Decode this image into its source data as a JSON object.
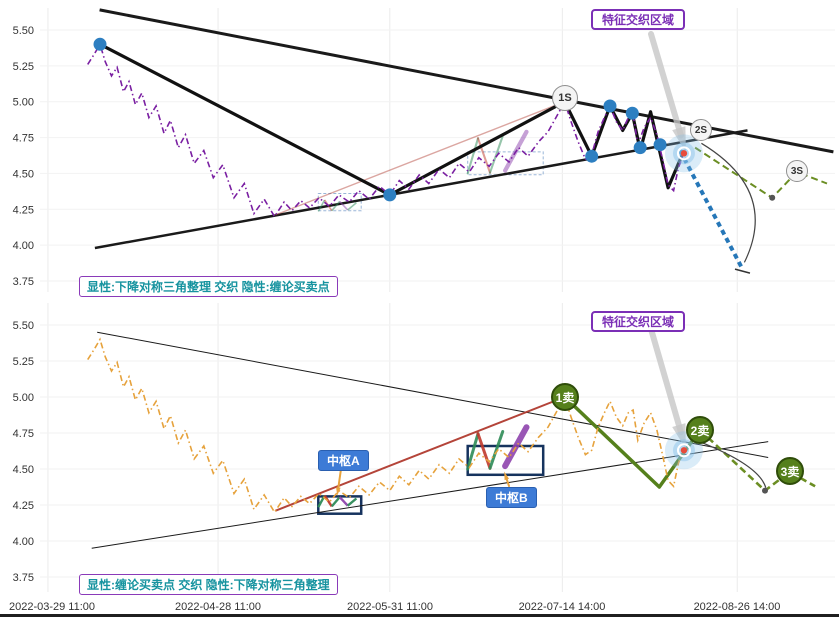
{
  "colors": {
    "accent_purple": "#7b2fb6",
    "teal_text": "#16939f",
    "blue_chip": "#3d7bd6",
    "marker_green": "#55801c",
    "price_top": "#7a1fa2",
    "price_bottom": "#e6a23c",
    "blue_dot": "#2d7fc1",
    "glow": "#85c1e9",
    "red_dot": "#e74c3c",
    "projection_blue": "#2677b8",
    "green_dash": "#6b8e23",
    "navy_box": "#16335e"
  },
  "chart_data": {
    "type": "line",
    "title": "",
    "grid": true,
    "y_range": [
      3.75,
      5.5
    ],
    "y_ticks": [
      {
        "value": 5.5,
        "label": "5.50"
      },
      {
        "value": 5.25,
        "label": "5.25"
      },
      {
        "value": 5.0,
        "label": "5.00"
      },
      {
        "value": 4.75,
        "label": "4.75"
      },
      {
        "value": 4.5,
        "label": "4.50"
      },
      {
        "value": 4.25,
        "label": "4.25"
      },
      {
        "value": 4.0,
        "label": "4.00"
      },
      {
        "value": 3.75,
        "label": "3.75"
      }
    ],
    "x_ticks": [
      {
        "t": 0.01,
        "label": "2022-03-29 11:00"
      },
      {
        "t": 0.224,
        "label": "2022-04-28 11:00"
      },
      {
        "t": 0.44,
        "label": "2022-05-31 11:00"
      },
      {
        "t": 0.657,
        "label": "2022-07-14 14:00"
      },
      {
        "t": 0.877,
        "label": "2022-08-26 14:00"
      }
    ],
    "price_points": [
      [
        0.06,
        5.26
      ],
      [
        0.068,
        5.33
      ],
      [
        0.0755,
        5.4
      ],
      [
        0.082,
        5.28
      ],
      [
        0.09,
        5.18
      ],
      [
        0.097,
        5.24
      ],
      [
        0.105,
        5.07
      ],
      [
        0.112,
        5.14
      ],
      [
        0.12,
        4.98
      ],
      [
        0.128,
        5.06
      ],
      [
        0.137,
        4.89
      ],
      [
        0.146,
        4.97
      ],
      [
        0.156,
        4.78
      ],
      [
        0.164,
        4.87
      ],
      [
        0.174,
        4.68
      ],
      [
        0.183,
        4.77
      ],
      [
        0.194,
        4.57
      ],
      [
        0.206,
        4.66
      ],
      [
        0.218,
        4.47
      ],
      [
        0.23,
        4.56
      ],
      [
        0.244,
        4.33
      ],
      [
        0.257,
        4.43
      ],
      [
        0.269,
        4.22
      ],
      [
        0.282,
        4.32
      ],
      [
        0.295,
        4.2
      ],
      [
        0.307,
        4.3
      ],
      [
        0.317,
        4.24
      ],
      [
        0.328,
        4.31
      ],
      [
        0.339,
        4.26
      ],
      [
        0.351,
        4.33
      ],
      [
        0.364,
        4.27
      ],
      [
        0.376,
        4.35
      ],
      [
        0.389,
        4.3
      ],
      [
        0.401,
        4.38
      ],
      [
        0.414,
        4.32
      ],
      [
        0.427,
        4.41
      ],
      [
        0.44,
        4.35
      ],
      [
        0.452,
        4.45
      ],
      [
        0.464,
        4.39
      ],
      [
        0.477,
        4.49
      ],
      [
        0.489,
        4.43
      ],
      [
        0.502,
        4.53
      ],
      [
        0.515,
        4.47
      ],
      [
        0.527,
        4.57
      ],
      [
        0.54,
        4.51
      ],
      [
        0.552,
        4.61
      ],
      [
        0.565,
        4.55
      ],
      [
        0.577,
        4.64
      ],
      [
        0.59,
        4.58
      ],
      [
        0.602,
        4.68
      ],
      [
        0.614,
        4.62
      ],
      [
        0.627,
        4.72
      ],
      [
        0.639,
        4.79
      ],
      [
        0.649,
        4.89
      ],
      [
        0.66,
        5.0
      ],
      [
        0.668,
        4.86
      ],
      [
        0.677,
        4.72
      ],
      [
        0.686,
        4.6
      ],
      [
        0.694,
        4.63
      ],
      [
        0.702,
        4.79
      ],
      [
        0.71,
        4.89
      ],
      [
        0.717,
        4.97
      ],
      [
        0.725,
        4.86
      ],
      [
        0.733,
        4.8
      ],
      [
        0.74,
        4.89
      ],
      [
        0.746,
        4.91
      ],
      [
        0.752,
        4.7
      ],
      [
        0.76,
        4.82
      ],
      [
        0.768,
        4.89
      ],
      [
        0.776,
        4.77
      ],
      [
        0.783,
        4.6
      ],
      [
        0.79,
        4.42
      ],
      [
        0.797,
        4.38
      ],
      [
        0.803,
        4.54
      ],
      [
        0.81,
        4.64
      ]
    ],
    "zigzag_a": [
      {
        "pts": [
          [
            0.35,
            4.235
          ],
          [
            0.358,
            4.315
          ]
        ],
        "color": "#2e8b57"
      },
      {
        "pts": [
          [
            0.358,
            4.315
          ],
          [
            0.367,
            4.24
          ]
        ],
        "color": "#c0392b"
      },
      {
        "pts": [
          [
            0.367,
            4.24
          ],
          [
            0.377,
            4.305
          ]
        ],
        "color": "#2e8b57"
      },
      {
        "pts": [
          [
            0.377,
            4.305
          ],
          [
            0.387,
            4.245
          ]
        ],
        "color": "#8e44ad"
      },
      {
        "pts": [
          [
            0.387,
            4.245
          ],
          [
            0.398,
            4.295
          ]
        ],
        "color": "#2e8b57"
      }
    ],
    "zigzag_b": [
      {
        "pts": [
          [
            0.538,
            4.5
          ],
          [
            0.551,
            4.745
          ]
        ],
        "color": "#2e8b57",
        "w": 3
      },
      {
        "pts": [
          [
            0.551,
            4.745
          ],
          [
            0.566,
            4.505
          ]
        ],
        "color": "#c0392b",
        "w": 3
      },
      {
        "pts": [
          [
            0.566,
            4.505
          ],
          [
            0.582,
            4.76
          ]
        ],
        "color": "#2e8b57",
        "w": 3
      },
      {
        "pts": [
          [
            0.585,
            4.52
          ],
          [
            0.612,
            4.79
          ]
        ],
        "color": "#8e44ad",
        "w": 6
      }
    ],
    "panels": [
      {
        "id": "top",
        "series_name": "price",
        "series_color": "#7a1fa2",
        "line_style": "dashdot",
        "region_label": "特征交织区域",
        "note": "显性:下降对称三角整理 交织 隐性:缠论买卖点",
        "triangle": {
          "weight": "bold",
          "upper": [
            [
              0.075,
              5.64
            ],
            [
              0.998,
              4.65
            ]
          ],
          "lower": [
            [
              0.069,
              3.98
            ],
            [
              0.89,
              4.8
            ]
          ]
        },
        "wave": [
          [
            0.0755,
            5.4
          ],
          [
            0.44,
            4.35
          ],
          [
            0.66,
            5.0
          ],
          [
            0.694,
            4.62
          ],
          [
            0.717,
            4.97
          ],
          [
            0.733,
            4.8
          ],
          [
            0.745,
            4.92
          ],
          [
            0.755,
            4.66
          ],
          [
            0.768,
            4.93
          ],
          [
            0.79,
            4.4
          ],
          [
            0.81,
            4.66
          ]
        ],
        "red_line": [
          [
            0.296,
            4.21
          ],
          [
            0.66,
            5.0
          ]
        ],
        "blue_dots": [
          [
            0.0755,
            5.4
          ],
          [
            0.44,
            4.35
          ],
          [
            0.694,
            4.62
          ],
          [
            0.717,
            4.97
          ],
          [
            0.745,
            4.92
          ],
          [
            0.755,
            4.68
          ],
          [
            0.78,
            4.7
          ]
        ],
        "sell_markers": [
          {
            "label": "1S",
            "t": 0.66,
            "v": 5.03
          },
          {
            "label": "2S",
            "t": 0.83,
            "v": 4.79
          },
          {
            "label": "3S",
            "t": 0.952,
            "v": 4.56
          }
        ],
        "focus": {
          "t": 0.81,
          "v": 4.64
        },
        "green_dashed": [
          [
            0.824,
            4.68
          ],
          [
            0.921,
            4.33
          ],
          [
            0.952,
            4.51
          ],
          [
            0.99,
            4.43
          ]
        ],
        "mid_dot": [
          0.921,
          4.33
        ],
        "projection": [
          [
            0.805,
            4.66
          ],
          [
            0.883,
            3.84
          ]
        ],
        "curve": [
          [
            0.832,
            4.71
          ],
          [
            0.93,
            4.38
          ],
          [
            0.886,
            3.88
          ]
        ],
        "boxes": [
          {
            "t0": 0.35,
            "t1": 0.404,
            "v0": 4.24,
            "v1": 4.36
          },
          {
            "t0": 0.538,
            "t1": 0.633,
            "v0": 4.49,
            "v1": 4.65
          }
        ]
      },
      {
        "id": "bottom",
        "series_name": "price",
        "series_color": "#e6a23c",
        "line_style": "dashdot",
        "region_label": "特征交织区域",
        "note": "显性:缠论买卖点 交织 隐性:下降对称三角整理",
        "triangle": {
          "weight": "thin",
          "upper": [
            [
              0.072,
              5.45
            ],
            [
              0.916,
              4.58
            ]
          ],
          "lower": [
            [
              0.065,
              3.95
            ],
            [
              0.916,
              4.69
            ]
          ]
        },
        "red_line": [
          [
            0.296,
            4.21
          ],
          [
            0.66,
            5.0
          ]
        ],
        "green_bold": [
          [
            0.66,
            5.0
          ],
          [
            0.779,
            4.375
          ],
          [
            0.83,
            4.77
          ]
        ],
        "sell_markers": [
          {
            "label": "1卖",
            "t": 0.66,
            "v": 5.0
          },
          {
            "label": "2卖",
            "t": 0.83,
            "v": 4.77
          },
          {
            "label": "3卖",
            "t": 0.943,
            "v": 4.48
          }
        ],
        "pivots": [
          {
            "label": "中枢A",
            "t0": 0.35,
            "t1": 0.404,
            "v0": 4.19,
            "v1": 4.31
          },
          {
            "label": "中枢B",
            "t0": 0.538,
            "t1": 0.633,
            "v0": 4.46,
            "v1": 4.66
          }
        ],
        "focus": {
          "t": 0.81,
          "v": 4.63
        },
        "green_dashed": [
          [
            0.83,
            4.77
          ],
          [
            0.912,
            4.35
          ],
          [
            0.943,
            4.48
          ],
          [
            0.975,
            4.38
          ]
        ],
        "mid_dot": [
          0.912,
          4.35
        ],
        "curve": [
          [
            0.834,
            4.68
          ],
          [
            0.905,
            4.52
          ],
          [
            0.913,
            4.37
          ]
        ],
        "boxes": [
          {
            "t0": 0.35,
            "t1": 0.404,
            "v0": 4.19,
            "v1": 4.31
          },
          {
            "t0": 0.538,
            "t1": 0.633,
            "v0": 4.46,
            "v1": 4.66
          }
        ]
      }
    ]
  }
}
